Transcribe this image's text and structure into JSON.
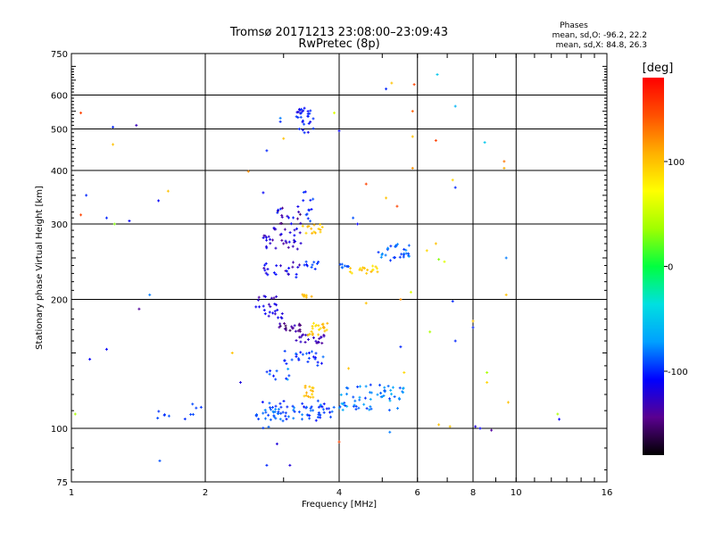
{
  "chart_data": {
    "type": "scatter",
    "title": "Tromsø 20171213 23:08:00–23:09:43",
    "subtitle": "RwPretec (8p)",
    "xlabel": "Frequency [MHz]",
    "ylabel": "Stationary phase Virtual Height [km]",
    "xscale": "log",
    "yscale": "log",
    "xlim": [
      1,
      16
    ],
    "ylim": [
      75,
      750
    ],
    "xticks": [
      {
        "value": 1,
        "label": "1"
      },
      {
        "value": 2,
        "label": "2"
      },
      {
        "value": 4,
        "label": "4"
      },
      {
        "value": 6,
        "label": "6"
      },
      {
        "value": 8,
        "label": "8"
      },
      {
        "value": 10,
        "label": "10"
      },
      {
        "value": 16,
        "label": "16"
      }
    ],
    "yticks": [
      {
        "value": 75,
        "label": "75"
      },
      {
        "value": 100,
        "label": "100"
      },
      {
        "value": 200,
        "label": "200"
      },
      {
        "value": 300,
        "label": "300"
      },
      {
        "value": 400,
        "label": "400"
      },
      {
        "value": 500,
        "label": "500"
      },
      {
        "value": 600,
        "label": "600"
      },
      {
        "value": 750,
        "label": "750"
      }
    ],
    "grid": true,
    "phase_box": {
      "title": "Phases",
      "line_o": "mean, sd,O: -96.2, 22.2",
      "line_x": "mean, sd,X:  84.8, 26.3"
    },
    "colorbar": {
      "label": "[deg]",
      "min": -180,
      "max": 180,
      "ticks": [
        {
          "value": 100,
          "label": "100"
        },
        {
          "value": 0,
          "label": "0"
        },
        {
          "value": -100,
          "label": "-100"
        }
      ],
      "colors": [
        "#000000",
        "#5a0090",
        "#0000ff",
        "#00a0ff",
        "#00e0e0",
        "#00ff40",
        "#a0ff00",
        "#ffff00",
        "#ffb000",
        "#ff5000",
        "#ff0000"
      ]
    },
    "clusters": [
      {
        "f": [
          2.6,
          3.9
        ],
        "h": [
          104,
          116
        ],
        "phase": [
          -110,
          -75
        ],
        "n": 70
      },
      {
        "f": [
          3.3,
          3.5
        ],
        "h": [
          118,
          126
        ],
        "phase": [
          90,
          110
        ],
        "n": 14
      },
      {
        "f": [
          4.0,
          5.6
        ],
        "h": [
          110,
          128
        ],
        "phase": [
          -100,
          -60
        ],
        "n": 60
      },
      {
        "f": [
          2.75,
          3.1
        ],
        "h": [
          128,
          138
        ],
        "phase": [
          -110,
          -70
        ],
        "n": 10
      },
      {
        "f": [
          3.0,
          3.7
        ],
        "h": [
          140,
          152
        ],
        "phase": [
          -110,
          -80
        ],
        "n": 25
      },
      {
        "f": [
          3.2,
          3.7
        ],
        "h": [
          158,
          166
        ],
        "phase": [
          -120,
          -140
        ],
        "n": 22
      },
      {
        "f": [
          2.9,
          3.3
        ],
        "h": [
          168,
          176
        ],
        "phase": [
          -120,
          -160
        ],
        "n": 20
      },
      {
        "f": [
          3.4,
          3.8
        ],
        "h": [
          165,
          178
        ],
        "phase": [
          80,
          110
        ],
        "n": 22
      },
      {
        "f": [
          2.7,
          3.0
        ],
        "h": [
          180,
          190
        ],
        "phase": [
          -110,
          -130
        ],
        "n": 12
      },
      {
        "f": [
          2.6,
          3.0
        ],
        "h": [
          192,
          205
        ],
        "phase": [
          -110,
          -140
        ],
        "n": 14
      },
      {
        "f": [
          3.3,
          3.5
        ],
        "h": [
          200,
          208
        ],
        "phase": [
          90,
          110
        ],
        "n": 8
      },
      {
        "f": [
          2.7,
          3.3
        ],
        "h": [
          225,
          245
        ],
        "phase": [
          -100,
          -140
        ],
        "n": 22
      },
      {
        "f": [
          3.3,
          3.6
        ],
        "h": [
          235,
          245
        ],
        "phase": [
          -110,
          -90
        ],
        "n": 10
      },
      {
        "f": [
          4.2,
          4.9
        ],
        "h": [
          230,
          240
        ],
        "phase": [
          80,
          110
        ],
        "n": 18
      },
      {
        "f": [
          4.0,
          4.3
        ],
        "h": [
          235,
          242
        ],
        "phase": [
          -100,
          -80
        ],
        "n": 8
      },
      {
        "f": [
          4.9,
          5.8
        ],
        "h": [
          245,
          270
        ],
        "phase": [
          -100,
          -70
        ],
        "n": 30
      },
      {
        "f": [
          2.7,
          3.3
        ],
        "h": [
          262,
          295
        ],
        "phase": [
          -110,
          -140
        ],
        "n": 35
      },
      {
        "f": [
          3.3,
          3.7
        ],
        "h": [
          285,
          300
        ],
        "phase": [
          90,
          110
        ],
        "n": 14
      },
      {
        "f": [
          2.9,
          3.3
        ],
        "h": [
          300,
          330
        ],
        "phase": [
          -100,
          -160
        ],
        "n": 18
      },
      {
        "f": [
          3.3,
          3.5
        ],
        "h": [
          300,
          360
        ],
        "phase": [
          -110,
          -90
        ],
        "n": 12
      },
      {
        "f": [
          3.2,
          3.5
        ],
        "h": [
          490,
          560
        ],
        "phase": [
          -120,
          -90
        ],
        "n": 30
      },
      {
        "f": [
          2.6,
          3.0
        ],
        "h": [
          100,
          112
        ],
        "phase": [
          -100,
          -80
        ],
        "n": 12
      },
      {
        "f": [
          1.8,
          2.0
        ],
        "h": [
          105,
          115
        ],
        "phase": [
          -100,
          -90
        ],
        "n": 6
      },
      {
        "f": [
          1.5,
          1.7
        ],
        "h": [
          105,
          110
        ],
        "phase": [
          -100,
          -90
        ],
        "n": 5
      }
    ],
    "points": [
      {
        "f": 1.05,
        "h": 545,
        "phase": 150
      },
      {
        "f": 1.05,
        "h": 315,
        "phase": 150
      },
      {
        "f": 1.08,
        "h": 350,
        "phase": -100
      },
      {
        "f": 1.2,
        "h": 310,
        "phase": -100
      },
      {
        "f": 1.24,
        "h": 505,
        "phase": -100
      },
      {
        "f": 1.24,
        "h": 460,
        "phase": 100
      },
      {
        "f": 1.25,
        "h": 300,
        "phase": 30
      },
      {
        "f": 1.35,
        "h": 305,
        "phase": -110
      },
      {
        "f": 1.4,
        "h": 510,
        "phase": -130
      },
      {
        "f": 1.42,
        "h": 190,
        "phase": -140
      },
      {
        "f": 1.5,
        "h": 205,
        "phase": -80
      },
      {
        "f": 1.57,
        "h": 340,
        "phase": -110
      },
      {
        "f": 1.58,
        "h": 84,
        "phase": -90
      },
      {
        "f": 1.65,
        "h": 358,
        "phase": 100
      },
      {
        "f": 1.1,
        "h": 145,
        "phase": -110
      },
      {
        "f": 1.2,
        "h": 153,
        "phase": -110
      },
      {
        "f": 1.02,
        "h": 108,
        "phase": 40
      },
      {
        "f": 2.9,
        "h": 92,
        "phase": -120
      },
      {
        "f": 3.1,
        "h": 82,
        "phase": -120
      },
      {
        "f": 2.75,
        "h": 82,
        "phase": -100
      },
      {
        "f": 4.0,
        "h": 495,
        "phase": -110
      },
      {
        "f": 3.9,
        "h": 545,
        "phase": 60
      },
      {
        "f": 5.25,
        "h": 640,
        "phase": 100
      },
      {
        "f": 5.1,
        "h": 620,
        "phase": -100
      },
      {
        "f": 5.9,
        "h": 635,
        "phase": 150
      },
      {
        "f": 6.65,
        "h": 670,
        "phase": -50
      },
      {
        "f": 5.85,
        "h": 550,
        "phase": 140
      },
      {
        "f": 5.85,
        "h": 480,
        "phase": 100
      },
      {
        "f": 5.85,
        "h": 405,
        "phase": 120
      },
      {
        "f": 6.6,
        "h": 470,
        "phase": 150
      },
      {
        "f": 7.3,
        "h": 565,
        "phase": -60
      },
      {
        "f": 7.2,
        "h": 380,
        "phase": 90
      },
      {
        "f": 7.3,
        "h": 365,
        "phase": -100
      },
      {
        "f": 8.5,
        "h": 465,
        "phase": -50
      },
      {
        "f": 9.4,
        "h": 420,
        "phase": 130
      },
      {
        "f": 9.4,
        "h": 405,
        "phase": 110
      },
      {
        "f": 9.5,
        "h": 250,
        "phase": -80
      },
      {
        "f": 9.5,
        "h": 205,
        "phase": 100
      },
      {
        "f": 8.0,
        "h": 178,
        "phase": 100
      },
      {
        "f": 8.0,
        "h": 172,
        "phase": -100
      },
      {
        "f": 8.1,
        "h": 101,
        "phase": -120
      },
      {
        "f": 8.3,
        "h": 100,
        "phase": -110
      },
      {
        "f": 8.8,
        "h": 99,
        "phase": -140
      },
      {
        "f": 8.6,
        "h": 135,
        "phase": 40
      },
      {
        "f": 8.6,
        "h": 128,
        "phase": 90
      },
      {
        "f": 9.6,
        "h": 115,
        "phase": 100
      },
      {
        "f": 12.4,
        "h": 108,
        "phase": 40
      },
      {
        "f": 12.5,
        "h": 105,
        "phase": -110
      },
      {
        "f": 6.3,
        "h": 260,
        "phase": 90
      },
      {
        "f": 6.6,
        "h": 270,
        "phase": 100
      },
      {
        "f": 6.7,
        "h": 248,
        "phase": 30
      },
      {
        "f": 6.9,
        "h": 245,
        "phase": 60
      },
      {
        "f": 7.2,
        "h": 198,
        "phase": -100
      },
      {
        "f": 7.3,
        "h": 160,
        "phase": -100
      },
      {
        "f": 6.4,
        "h": 168,
        "phase": 40
      },
      {
        "f": 6.7,
        "h": 102,
        "phase": 100
      },
      {
        "f": 7.1,
        "h": 101,
        "phase": 100
      },
      {
        "f": 4.6,
        "h": 372,
        "phase": 150
      },
      {
        "f": 5.1,
        "h": 345,
        "phase": 100
      },
      {
        "f": 4.3,
        "h": 310,
        "phase": -90
      },
      {
        "f": 4.4,
        "h": 300,
        "phase": -110
      },
      {
        "f": 5.4,
        "h": 330,
        "phase": 150
      },
      {
        "f": 4.6,
        "h": 196,
        "phase": 100
      },
      {
        "f": 5.5,
        "h": 200,
        "phase": 120
      },
      {
        "f": 5.8,
        "h": 208,
        "phase": 60
      },
      {
        "f": 5.5,
        "h": 155,
        "phase": -100
      },
      {
        "f": 4.2,
        "h": 138,
        "phase": 100
      },
      {
        "f": 5.6,
        "h": 135,
        "phase": 90
      },
      {
        "f": 5.2,
        "h": 98,
        "phase": -80
      },
      {
        "f": 4.0,
        "h": 93,
        "phase": 150
      },
      {
        "f": 2.5,
        "h": 398,
        "phase": 120
      },
      {
        "f": 2.7,
        "h": 355,
        "phase": -110
      },
      {
        "f": 2.75,
        "h": 445,
        "phase": -100
      },
      {
        "f": 2.95,
        "h": 520,
        "phase": -100
      },
      {
        "f": 2.95,
        "h": 530,
        "phase": -80
      },
      {
        "f": 3.0,
        "h": 475,
        "phase": 100
      },
      {
        "f": 2.3,
        "h": 150,
        "phase": 100
      },
      {
        "f": 2.4,
        "h": 128,
        "phase": -120
      }
    ]
  }
}
